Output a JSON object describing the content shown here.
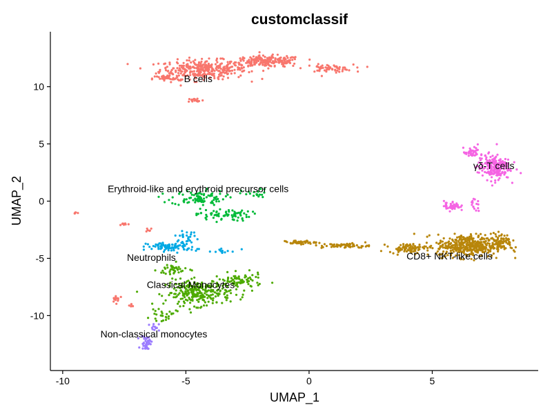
{
  "chart_data": {
    "type": "scatter",
    "title": "customclassif",
    "xlabel": "UMAP_1",
    "ylabel": "UMAP_2",
    "xlim": [
      -10.5,
      9.3
    ],
    "ylim": [
      -14.8,
      14.8
    ],
    "x_ticks": [
      -10,
      -5,
      0,
      5
    ],
    "y_ticks": [
      -10,
      -5,
      0,
      5,
      10
    ],
    "grid": false,
    "legend": "none",
    "series": [
      {
        "name": "B cells",
        "color": "#F8766D",
        "label_pos": [
          -4.5,
          10.7
        ],
        "blobs": [
          {
            "cx": -4.3,
            "cy": 11.5,
            "sx": 1.6,
            "sy": 0.75,
            "n": 320
          },
          {
            "cx": -1.7,
            "cy": 12.2,
            "sx": 1.3,
            "sy": 0.45,
            "n": 200
          },
          {
            "cx": 0.8,
            "cy": 11.6,
            "sx": 0.9,
            "sy": 0.3,
            "n": 60
          },
          {
            "cx": -5.8,
            "cy": 10.7,
            "sx": 0.5,
            "sy": 0.3,
            "n": 40
          },
          {
            "cx": -4.6,
            "cy": 8.8,
            "sx": 0.3,
            "sy": 0.2,
            "n": 18
          },
          {
            "cx": -9.5,
            "cy": -1.0,
            "sx": 0.1,
            "sy": 0.1,
            "n": 5
          },
          {
            "cx": -7.5,
            "cy": -2.0,
            "sx": 0.2,
            "sy": 0.1,
            "n": 8
          },
          {
            "cx": -6.5,
            "cy": -2.5,
            "sx": 0.15,
            "sy": 0.2,
            "n": 6
          },
          {
            "cx": -7.8,
            "cy": -8.5,
            "sx": 0.2,
            "sy": 0.3,
            "n": 14
          },
          {
            "cx": -7.2,
            "cy": -9.2,
            "sx": 0.2,
            "sy": 0.2,
            "n": 6
          }
        ]
      },
      {
        "name": "Erythroid-like and erythroid precursor cells",
        "color": "#00BA38",
        "label_pos": [
          -4.5,
          1.1
        ],
        "blobs": [
          {
            "cx": -4.5,
            "cy": 0.3,
            "sx": 1.0,
            "sy": 0.6,
            "n": 90
          },
          {
            "cx": -3.5,
            "cy": -1.2,
            "sx": 1.0,
            "sy": 0.5,
            "n": 70
          },
          {
            "cx": -2.2,
            "cy": 0.6,
            "sx": 0.5,
            "sy": 0.4,
            "n": 20
          }
        ]
      },
      {
        "name": "Neutrophils",
        "color": "#00A9E4",
        "label_pos": [
          -6.4,
          -4.9
        ],
        "blobs": [
          {
            "cx": -5.6,
            "cy": -4.0,
            "sx": 0.9,
            "sy": 0.35,
            "n": 90
          },
          {
            "cx": -5.0,
            "cy": -3.1,
            "sx": 0.4,
            "sy": 0.4,
            "n": 25
          },
          {
            "cx": -3.6,
            "cy": -4.4,
            "sx": 0.6,
            "sy": 0.3,
            "n": 15
          }
        ]
      },
      {
        "name": "Classical Monocytes",
        "color": "#4DAA00",
        "label_pos": [
          -4.8,
          -7.3
        ],
        "blobs": [
          {
            "cx": -4.5,
            "cy": -8.0,
            "sx": 1.2,
            "sy": 1.0,
            "n": 260
          },
          {
            "cx": -2.8,
            "cy": -7.0,
            "sx": 0.8,
            "sy": 0.6,
            "n": 80
          },
          {
            "cx": -5.5,
            "cy": -6.0,
            "sx": 0.6,
            "sy": 0.5,
            "n": 40
          },
          {
            "cx": -6.0,
            "cy": -10.0,
            "sx": 0.4,
            "sy": 0.4,
            "n": 25
          }
        ]
      },
      {
        "name": "Non-classical monocytes",
        "color": "#9C7DFF",
        "label_pos": [
          -6.3,
          -11.6
        ],
        "blobs": [
          {
            "cx": -6.6,
            "cy": -12.4,
            "sx": 0.2,
            "sy": 0.6,
            "n": 40
          },
          {
            "cx": -6.3,
            "cy": -11.0,
            "sx": 0.2,
            "sy": 0.3,
            "n": 12
          }
        ]
      },
      {
        "name": "CD8+ NKT-like cells",
        "color": "#B8860B",
        "label_pos": [
          5.7,
          -4.8
        ],
        "blobs": [
          {
            "cx": 6.5,
            "cy": -3.9,
            "sx": 1.2,
            "sy": 0.9,
            "n": 420
          },
          {
            "cx": 7.8,
            "cy": -3.5,
            "sx": 0.4,
            "sy": 0.6,
            "n": 60
          },
          {
            "cx": 4.0,
            "cy": -4.1,
            "sx": 0.7,
            "sy": 0.35,
            "n": 80
          },
          {
            "cx": 1.5,
            "cy": -3.9,
            "sx": 0.9,
            "sy": 0.2,
            "n": 60
          },
          {
            "cx": -0.4,
            "cy": -3.6,
            "sx": 0.6,
            "sy": 0.15,
            "n": 40
          }
        ]
      },
      {
        "name": "γδ-T cells",
        "color": "#F564E3",
        "label_pos": [
          7.5,
          3.1
        ],
        "blobs": [
          {
            "cx": 7.5,
            "cy": 3.0,
            "sx": 0.6,
            "sy": 1.0,
            "n": 200
          },
          {
            "cx": 6.6,
            "cy": 4.2,
            "sx": 0.3,
            "sy": 0.4,
            "n": 40
          },
          {
            "cx": 5.8,
            "cy": -0.4,
            "sx": 0.3,
            "sy": 0.4,
            "n": 45
          },
          {
            "cx": 6.7,
            "cy": -0.4,
            "sx": 0.2,
            "sy": 0.5,
            "n": 15
          }
        ]
      }
    ]
  }
}
